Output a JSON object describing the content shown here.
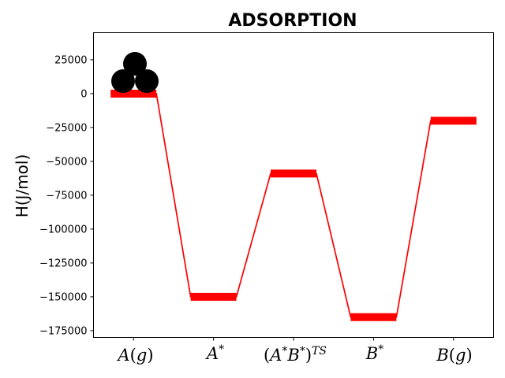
{
  "chart_data": {
    "type": "line",
    "title": "ADSORPTION",
    "ylabel": "H(J/mol)",
    "xlabel": "",
    "ylim": [
      -180000,
      45000
    ],
    "yticks": [
      25000,
      0,
      -25000,
      -50000,
      -75000,
      -100000,
      -125000,
      -150000,
      -175000
    ],
    "ytick_labels": [
      "25000",
      "0",
      "−25000",
      "−50000",
      "−75000",
      "−100000",
      "−125000",
      "−150000",
      "−175000"
    ],
    "categories": [
      "A(g)",
      "A*",
      "(A*B*)TS",
      "B*",
      "B(g)"
    ],
    "values": [
      0,
      -150000,
      -59000,
      -165000,
      -20000
    ],
    "grid": false,
    "legend": "none",
    "colors": {
      "series": "#ff0000",
      "molecule": "#000000",
      "axes": "#000000"
    },
    "icon": "molecule-cluster-icon"
  }
}
